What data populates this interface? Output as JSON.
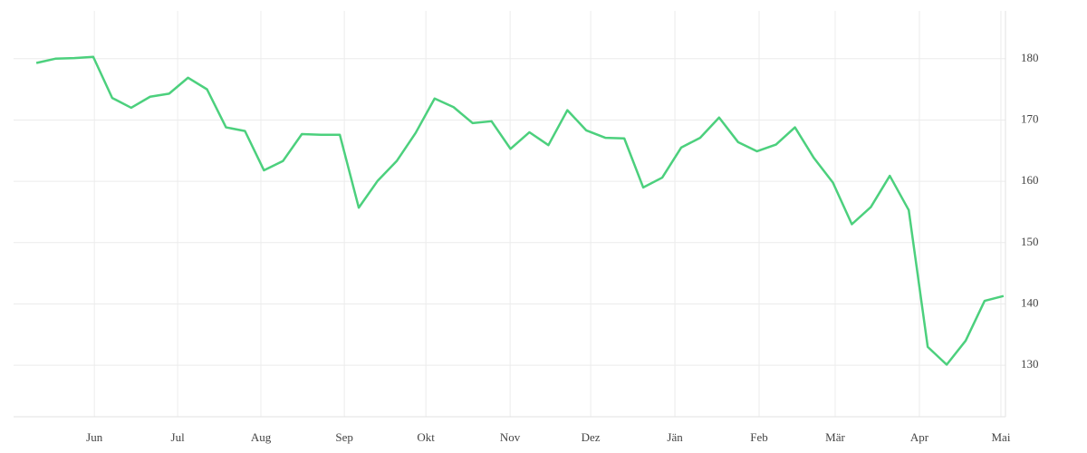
{
  "chart_data": {
    "type": "line",
    "x": [
      0,
      1,
      2,
      3,
      4,
      5,
      6,
      7,
      8,
      9,
      10,
      11,
      12,
      13,
      14,
      15,
      16,
      17,
      18,
      19,
      20,
      21,
      22,
      23,
      24,
      25,
      26,
      27,
      28,
      29,
      30,
      31,
      32,
      33,
      34,
      35,
      36,
      37,
      38,
      39,
      40,
      41,
      42,
      43,
      44,
      45,
      46,
      47,
      48,
      49,
      50,
      51
    ],
    "series": [
      {
        "color": "#4cd07d",
        "values": [
          179.3,
          180.0,
          180.1,
          180.3,
          173.6,
          172.0,
          173.8,
          174.3,
          176.9,
          175.0,
          168.8,
          168.2,
          161.8,
          163.3,
          167.7,
          167.6,
          167.6,
          155.7,
          160.1,
          163.3,
          167.9,
          173.5,
          172.1,
          169.5,
          169.8,
          165.3,
          168.0,
          165.9,
          171.6,
          168.3,
          167.1,
          167.0,
          159.0,
          160.6,
          165.5,
          167.1,
          170.4,
          166.4,
          164.9,
          166.0,
          168.8,
          163.8,
          159.8,
          153.0,
          155.8,
          160.9,
          155.3,
          133.0,
          130.1,
          134.0,
          140.5,
          141.3
        ]
      }
    ],
    "xlim": [
      -1.2,
      51.1
    ],
    "xticks": [
      {
        "value": 3.06,
        "label": "Jun"
      },
      {
        "value": 7.45,
        "label": "Jul"
      },
      {
        "value": 11.84,
        "label": "Aug"
      },
      {
        "value": 16.24,
        "label": "Sep"
      },
      {
        "value": 20.54,
        "label": "Okt"
      },
      {
        "value": 24.98,
        "label": "Nov"
      },
      {
        "value": 29.23,
        "label": "Dez"
      },
      {
        "value": 33.67,
        "label": "Jän"
      },
      {
        "value": 38.11,
        "label": "Feb"
      },
      {
        "value": 42.12,
        "label": "Mär"
      },
      {
        "value": 46.56,
        "label": "Apr"
      },
      {
        "value": 50.86,
        "label": "Mai"
      }
    ],
    "ylim": [
      121.6,
      187.8
    ],
    "yticks": [
      130,
      140,
      150,
      160,
      170,
      180
    ],
    "grid": true
  }
}
